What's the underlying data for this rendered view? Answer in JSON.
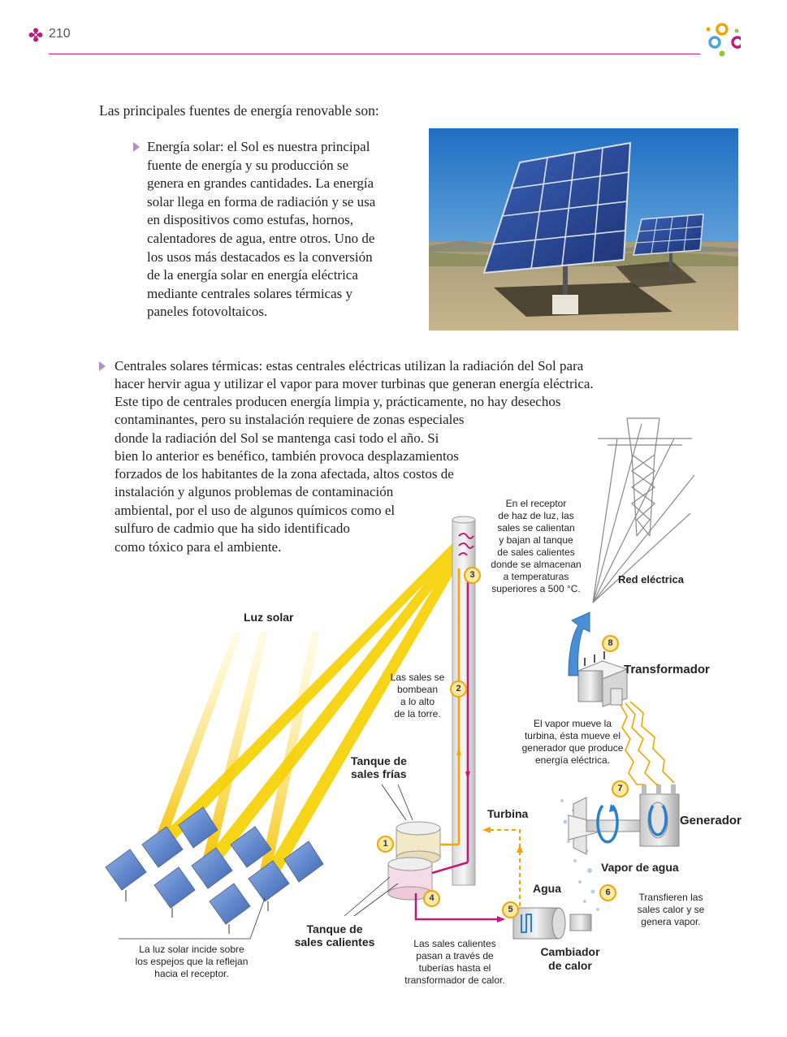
{
  "header": {
    "page_number": "210"
  },
  "intro": "Las principales fuentes de energía renovable son:",
  "solar": {
    "lines": [
      "Energía solar: el Sol es nuestra principal",
      "fuente de energía y su producción se",
      "genera en grandes cantidades. La energía",
      "solar llega en forma de radiación y se usa",
      "en dispositivos como estufas, hornos,",
      "calentadores de agua, entre otros. Uno de",
      "los usos más destacados es la conversión",
      "de la energía solar en energía eléctrica",
      "mediante centrales solares térmicas y",
      "paneles fotovoltaicos."
    ]
  },
  "thermal": {
    "lines": [
      "Centrales solares térmicas: estas centrales eléctricas utilizan la radiación del Sol para",
      "hacer hervir agua y utilizar el vapor para mover turbinas que generan energía eléctrica.",
      "Este tipo de centrales producen energía limpia y, prácticamente, no hay desechos",
      "contaminantes, pero su instalación requiere de zonas especiales",
      "donde la radiación del Sol se mantenga casi todo el año. Si",
      "bien lo anterior es benéfico, también provoca desplazamientos",
      "forzados de los habitantes de la zona afectada, altos costos de",
      "instalación y algunos problemas de contaminación",
      "ambiental, por el uso de algunos químicos como el",
      "sulfuro de cadmio que ha sido identificado",
      "como tóxico para el ambiente."
    ]
  },
  "diagram": {
    "luz_solar": "Luz solar",
    "receptor_note": [
      "En el receptor",
      "de haz de luz, las",
      "sales se calientan",
      "y bajan al tanque",
      "de sales calientes",
      "donde se almacenan",
      "a temperaturas",
      "superiores a 500 °C."
    ],
    "red_electrica": "Red eléctrica",
    "transformador": "Transformador",
    "bombean_note": [
      "Las sales se",
      "bombean",
      "a lo alto",
      "de la torre."
    ],
    "vapor_note": [
      "El vapor mueve la",
      "turbina, ésta mueve el",
      "generador que produce",
      "energía eléctrica."
    ],
    "tanque_frias": [
      "Tanque de",
      "sales frías"
    ],
    "turbina": "Turbina",
    "generador": "Generador",
    "vapor_agua": "Vapor de agua",
    "agua": "Agua",
    "transfieren_note": [
      "Transfieren las",
      "sales calor y se",
      "genera vapor."
    ],
    "tanque_calientes": [
      "Tanque de",
      "sales calientes"
    ],
    "luz_note": [
      "La luz solar incide sobre",
      "los espejos que la reflejan",
      "hacia el receptor."
    ],
    "calientes_note": [
      "Las sales calientes",
      "pasan a través de",
      "tuberías hasta el",
      "transformador de calor."
    ],
    "cambiador": [
      "Cambiador",
      "de calor"
    ],
    "steps": [
      "1",
      "2",
      "3",
      "4",
      "5",
      "6",
      "7",
      "8"
    ]
  }
}
